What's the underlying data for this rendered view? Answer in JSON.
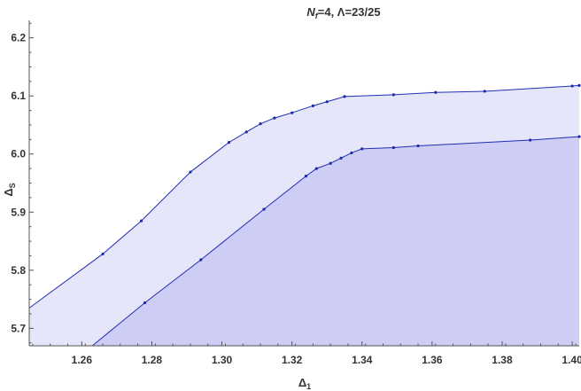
{
  "chart_data": {
    "type": "area",
    "title": "N_f=4, Λ=23/25",
    "title_parts": {
      "n": "N",
      "n_sub": "f",
      "rest": "=4, Λ=23/25"
    },
    "xlabel": "Δ",
    "xlabel_sub": "1",
    "ylabel": "Δ",
    "ylabel_sub": "S",
    "xlim": [
      1.245,
      1.402
    ],
    "ylim": [
      5.67,
      6.23
    ],
    "x_ticks": [
      "1.26",
      "1.28",
      "1.30",
      "1.32",
      "1.34",
      "1.36",
      "1.38",
      "1.40"
    ],
    "y_ticks": [
      "5.7",
      "5.8",
      "5.9",
      "6.0",
      "6.1",
      "6.2"
    ],
    "grid": false,
    "series": [
      {
        "role": "upper-boundary",
        "color": "#1f2fb5",
        "fill": "#e6e6fa",
        "points": [
          [
            1.245,
            5.735
          ],
          [
            1.266,
            5.828
          ],
          [
            1.277,
            5.885
          ],
          [
            1.291,
            5.969
          ],
          [
            1.302,
            6.02
          ],
          [
            1.307,
            6.038
          ],
          [
            1.311,
            6.052
          ],
          [
            1.315,
            6.062
          ],
          [
            1.32,
            6.071
          ],
          [
            1.326,
            6.083
          ],
          [
            1.33,
            6.09
          ],
          [
            1.335,
            6.099
          ],
          [
            1.349,
            6.102
          ],
          [
            1.361,
            6.106
          ],
          [
            1.375,
            6.108
          ],
          [
            1.4,
            6.117
          ],
          [
            1.402,
            6.118
          ]
        ]
      },
      {
        "role": "lower-boundary",
        "color": "#1f2fb5",
        "fill": "#cdcdf6",
        "points": [
          [
            1.263,
            5.67
          ],
          [
            1.278,
            5.744
          ],
          [
            1.294,
            5.818
          ],
          [
            1.312,
            5.905
          ],
          [
            1.324,
            5.962
          ],
          [
            1.327,
            5.975
          ],
          [
            1.331,
            5.984
          ],
          [
            1.334,
            5.993
          ],
          [
            1.337,
            6.002
          ],
          [
            1.34,
            6.009
          ],
          [
            1.349,
            6.011
          ],
          [
            1.356,
            6.014
          ],
          [
            1.388,
            6.024
          ],
          [
            1.402,
            6.03
          ]
        ]
      }
    ],
    "colors": {
      "axis": "#555555",
      "line": "#1f2fb5",
      "marker": "#1a2aa8"
    }
  }
}
